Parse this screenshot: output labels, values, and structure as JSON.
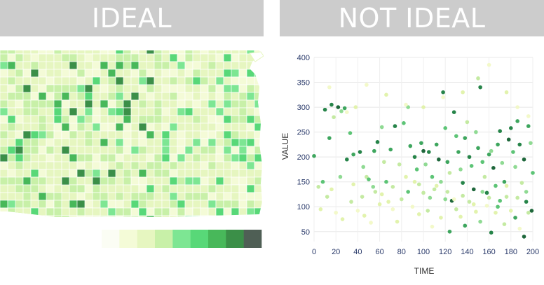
{
  "panels": {
    "left": {
      "title": "IDEAL"
    },
    "right": {
      "title": "NOT IDEAL"
    }
  },
  "colors": {
    "header_bg": "#cccccc",
    "header_text": "#ffffff",
    "scale": [
      "#fbfdf4",
      "#f4fbd7",
      "#e6f6c0",
      "#c8f0a8",
      "#7de693",
      "#58d878",
      "#48b85a",
      "#3b8f48",
      "#4f5f55"
    ]
  },
  "map": {
    "type": "choropleth",
    "legend_bins": 9
  },
  "chart_data": {
    "type": "scatter",
    "title": "",
    "xlabel": "TIME",
    "ylabel": "VALUE",
    "xlim": [
      0,
      200
    ],
    "ylim": [
      30,
      400
    ],
    "xticks": [
      "0",
      "20",
      "40",
      "60",
      "80",
      "100",
      "120",
      "140",
      "160",
      "180",
      "200"
    ],
    "yticks": [
      "50",
      "100",
      "150",
      "200",
      "250",
      "300",
      "350",
      "400"
    ],
    "grid": true,
    "points_note": "",
    "points": [
      [
        0,
        202
      ],
      [
        8,
        150
      ],
      [
        10,
        295
      ],
      [
        14,
        238
      ],
      [
        16,
        305
      ],
      [
        18,
        280
      ],
      [
        22,
        300
      ],
      [
        25,
        292
      ],
      [
        28,
        298
      ],
      [
        30,
        195
      ],
      [
        33,
        248
      ],
      [
        36,
        205
      ],
      [
        38,
        300
      ],
      [
        42,
        210
      ],
      [
        45,
        180
      ],
      [
        48,
        160
      ],
      [
        50,
        155
      ],
      [
        55,
        212
      ],
      [
        58,
        230
      ],
      [
        62,
        260
      ],
      [
        64,
        190
      ],
      [
        66,
        150
      ],
      [
        68,
        110
      ],
      [
        70,
        215
      ],
      [
        74,
        262
      ],
      [
        78,
        185
      ],
      [
        82,
        268
      ],
      [
        84,
        160
      ],
      [
        86,
        300
      ],
      [
        88,
        222
      ],
      [
        92,
        200
      ],
      [
        94,
        175
      ],
      [
        96,
        145
      ],
      [
        98,
        228
      ],
      [
        100,
        212
      ],
      [
        102,
        185
      ],
      [
        105,
        210
      ],
      [
        108,
        160
      ],
      [
        110,
        135
      ],
      [
        112,
        225
      ],
      [
        114,
        195
      ],
      [
        116,
        150
      ],
      [
        118,
        330
      ],
      [
        120,
        258
      ],
      [
        122,
        190
      ],
      [
        124,
        168
      ],
      [
        126,
        112
      ],
      [
        128,
        290
      ],
      [
        130,
        242
      ],
      [
        132,
        210
      ],
      [
        134,
        175
      ],
      [
        136,
        148
      ],
      [
        138,
        238
      ],
      [
        140,
        270
      ],
      [
        142,
        200
      ],
      [
        144,
        182
      ],
      [
        146,
        135
      ],
      [
        148,
        250
      ],
      [
        150,
        218
      ],
      [
        152,
        340
      ],
      [
        154,
        190
      ],
      [
        156,
        160
      ],
      [
        158,
        128
      ],
      [
        160,
        205
      ],
      [
        162,
        212
      ],
      [
        164,
        178
      ],
      [
        166,
        142
      ],
      [
        168,
        225
      ],
      [
        170,
        252
      ],
      [
        172,
        188
      ],
      [
        174,
        150
      ],
      [
        176,
        120
      ],
      [
        178,
        235
      ],
      [
        180,
        258
      ],
      [
        182,
        210
      ],
      [
        184,
        180
      ],
      [
        186,
        272
      ],
      [
        188,
        225
      ],
      [
        190,
        148
      ],
      [
        192,
        195
      ],
      [
        194,
        110
      ],
      [
        196,
        262
      ],
      [
        198,
        228
      ],
      [
        200,
        168
      ],
      [
        6,
        95
      ],
      [
        12,
        120
      ],
      [
        20,
        88
      ],
      [
        26,
        75
      ],
      [
        34,
        110
      ],
      [
        40,
        92
      ],
      [
        46,
        82
      ],
      [
        52,
        68
      ],
      [
        56,
        130
      ],
      [
        60,
        105
      ],
      [
        72,
        95
      ],
      [
        76,
        70
      ],
      [
        80,
        115
      ],
      [
        90,
        100
      ],
      [
        96,
        85
      ],
      [
        104,
        92
      ],
      [
        108,
        60
      ],
      [
        116,
        78
      ],
      [
        120,
        115
      ],
      [
        124,
        50
      ],
      [
        130,
        95
      ],
      [
        134,
        80
      ],
      [
        138,
        62
      ],
      [
        142,
        110
      ],
      [
        148,
        90
      ],
      [
        152,
        70
      ],
      [
        158,
        102
      ],
      [
        162,
        48
      ],
      [
        166,
        88
      ],
      [
        170,
        112
      ],
      [
        174,
        65
      ],
      [
        180,
        92
      ],
      [
        184,
        78
      ],
      [
        188,
        56
      ],
      [
        192,
        40
      ],
      [
        196,
        88
      ],
      [
        199,
        92
      ],
      [
        4,
        140
      ],
      [
        16,
        135
      ],
      [
        24,
        160
      ],
      [
        36,
        145
      ],
      [
        44,
        120
      ],
      [
        54,
        140
      ],
      [
        62,
        125
      ],
      [
        72,
        140
      ],
      [
        86,
        130
      ],
      [
        92,
        150
      ],
      [
        100,
        128
      ],
      [
        106,
        118
      ],
      [
        112,
        142
      ],
      [
        122,
        130
      ],
      [
        128,
        115
      ],
      [
        136,
        122
      ],
      [
        146,
        105
      ],
      [
        154,
        130
      ],
      [
        160,
        118
      ],
      [
        168,
        100
      ],
      [
        176,
        142
      ],
      [
        186,
        118
      ],
      [
        194,
        130
      ],
      [
        14,
        340
      ],
      [
        30,
        290
      ],
      [
        48,
        345
      ],
      [
        66,
        325
      ],
      [
        84,
        305
      ],
      [
        100,
        300
      ],
      [
        118,
        320
      ],
      [
        136,
        330
      ],
      [
        150,
        358
      ],
      [
        160,
        385
      ],
      [
        176,
        330
      ],
      [
        186,
        300
      ],
      [
        196,
        282
      ]
    ],
    "point_levels": [
      6,
      5,
      7,
      6,
      7,
      3,
      8,
      4,
      6,
      7,
      5,
      6,
      2,
      7,
      4,
      3,
      5,
      6,
      7,
      4,
      3,
      5,
      2,
      6,
      7,
      3,
      5,
      2,
      4,
      6,
      7,
      5,
      3,
      6,
      8,
      4,
      7,
      5,
      3,
      6,
      8,
      4,
      7,
      5,
      6,
      3,
      8,
      7,
      5,
      6,
      4,
      7,
      6,
      3,
      7,
      5,
      8,
      4,
      6,
      7,
      5,
      3,
      7,
      6,
      4,
      8,
      5,
      6,
      7,
      4,
      6,
      3,
      8,
      7,
      5,
      4,
      6,
      7,
      3,
      8,
      7,
      6,
      4,
      5,
      2,
      3,
      1,
      2,
      3,
      1,
      2,
      1,
      3,
      2,
      1,
      2,
      3,
      1,
      2,
      3,
      1,
      2,
      4,
      6,
      3,
      2,
      6,
      3,
      2,
      4,
      1,
      7,
      2,
      5,
      3,
      2,
      6,
      1,
      8,
      3,
      8,
      3,
      2,
      4,
      2,
      3,
      4,
      2,
      3,
      5,
      2,
      3,
      4,
      2,
      3,
      1,
      3,
      2,
      4,
      3,
      5,
      2,
      3,
      4,
      1,
      1,
      1,
      2,
      1,
      2,
      1,
      2,
      3,
      1,
      2,
      1,
      1
    ]
  }
}
